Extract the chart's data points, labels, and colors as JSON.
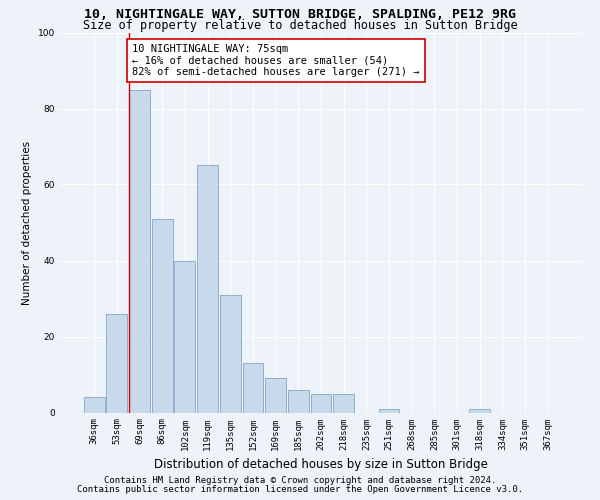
{
  "title1": "10, NIGHTINGALE WAY, SUTTON BRIDGE, SPALDING, PE12 9RG",
  "title2": "Size of property relative to detached houses in Sutton Bridge",
  "xlabel": "Distribution of detached houses by size in Sutton Bridge",
  "ylabel": "Number of detached properties",
  "footnote1": "Contains HM Land Registry data © Crown copyright and database right 2024.",
  "footnote2": "Contains public sector information licensed under the Open Government Licence v3.0.",
  "annotation_line1": "10 NIGHTINGALE WAY: 75sqm",
  "annotation_line2": "← 16% of detached houses are smaller (54)",
  "annotation_line3": "82% of semi-detached houses are larger (271) →",
  "bar_color": "#c9d9ec",
  "bar_edge_color": "#7099ba",
  "vline_color": "#cc0000",
  "vline_x_index": 2,
  "categories": [
    "36sqm",
    "53sqm",
    "69sqm",
    "86sqm",
    "102sqm",
    "119sqm",
    "135sqm",
    "152sqm",
    "169sqm",
    "185sqm",
    "202sqm",
    "218sqm",
    "235sqm",
    "251sqm",
    "268sqm",
    "285sqm",
    "301sqm",
    "318sqm",
    "334sqm",
    "351sqm",
    "367sqm"
  ],
  "values": [
    4,
    26,
    85,
    51,
    40,
    65,
    31,
    13,
    9,
    6,
    5,
    5,
    0,
    1,
    0,
    0,
    0,
    1,
    0,
    0,
    0
  ],
  "ylim": [
    0,
    100
  ],
  "yticks": [
    0,
    20,
    40,
    60,
    80,
    100
  ],
  "background_color": "#eef2f9",
  "grid_color": "#ffffff",
  "title1_fontsize": 9.5,
  "title2_fontsize": 8.5,
  "annotation_fontsize": 7.5,
  "xlabel_fontsize": 8.5,
  "ylabel_fontsize": 7.5,
  "tick_fontsize": 6.5,
  "footnote_fontsize": 6.5
}
